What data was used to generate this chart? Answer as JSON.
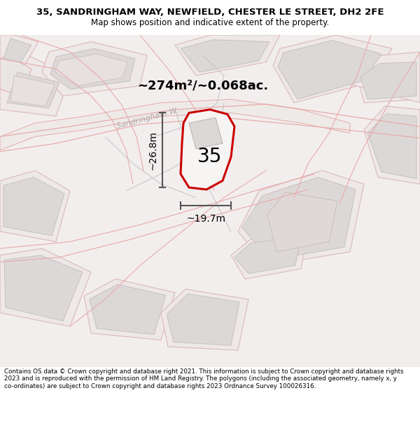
{
  "title": "35, SANDRINGHAM WAY, NEWFIELD, CHESTER LE STREET, DH2 2FE",
  "subtitle": "Map shows position and indicative extent of the property.",
  "footer": "Contains OS data © Crown copyright and database right 2021. This information is subject to Crown copyright and database rights 2023 and is reproduced with the permission of HM Land Registry. The polygons (including the associated geometry, namely x, y co-ordinates) are subject to Crown copyright and database rights 2023 Ordnance Survey 100026316.",
  "area_text": "~274m²/~0.068ac.",
  "plot_number": "35",
  "dim_width": "~19.7m",
  "dim_height": "~26.8m",
  "map_bg": "#f7f4f4",
  "plot_fill": "#f5f0f0",
  "plot_stroke": "#cc0000",
  "road_fill": "#ede8e8",
  "road_edge": "#e8aaaa",
  "parcel_fill": "#eee8e8",
  "parcel_edge": "#ddb8b8",
  "building_fill": "#ddd8d8",
  "building_edge": "#c8c0c0",
  "dim_color": "#555555",
  "street_label_color": "#b0a8a8",
  "title_fontsize": 9.5,
  "subtitle_fontsize": 8.5,
  "footer_fontsize": 6.3,
  "area_fontsize": 13,
  "plot_num_fontsize": 20,
  "dim_fontsize": 10,
  "street_fontsize": 8
}
